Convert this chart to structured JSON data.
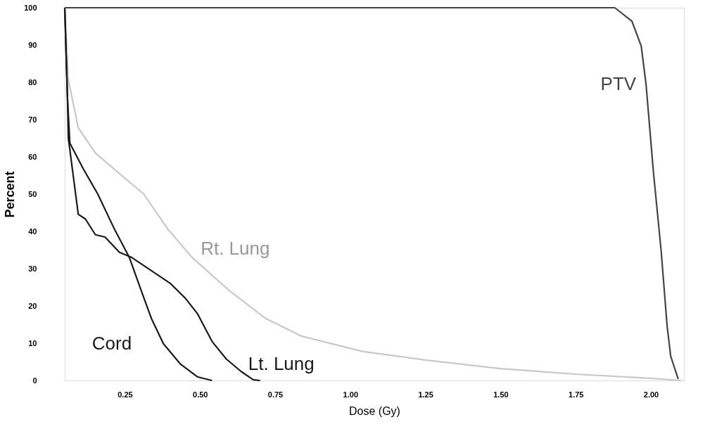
{
  "chart_data": {
    "type": "line",
    "xlabel": "Dose (Gy)",
    "ylabel": "Percent",
    "xlim": [
      0.05,
      2.11
    ],
    "ylim": [
      0,
      100
    ],
    "xticks": [
      {
        "value": 0.25,
        "label": "0.25"
      },
      {
        "value": 0.5,
        "label": "0.50"
      },
      {
        "value": 0.75,
        "label": "0.75"
      },
      {
        "value": 1,
        "label": "1.00"
      },
      {
        "value": 1.25,
        "label": "1.25"
      },
      {
        "value": 1.5,
        "label": "1.50"
      },
      {
        "value": 1.75,
        "label": "1.75"
      },
      {
        "value": 2,
        "label": "2.00"
      }
    ],
    "yticks": [
      0,
      10,
      20,
      30,
      40,
      50,
      60,
      70,
      80,
      90,
      100
    ],
    "grid": false,
    "series": [
      {
        "name": "Rt. Lung",
        "color": "#c8c8c8",
        "x": [
          0.05,
          0.062,
          0.095,
          0.152,
          0.232,
          0.313,
          0.394,
          0.474,
          0.596,
          0.717,
          0.838,
          1.04,
          1.25,
          1.5,
          1.75,
          2.0,
          2.1
        ],
        "values": [
          100,
          80.7,
          67.8,
          61,
          55.5,
          50,
          40.5,
          33,
          24.2,
          16.7,
          11.9,
          7.8,
          5.5,
          3.2,
          1.7,
          0.6,
          0
        ]
      },
      {
        "name": "Lt. Lung",
        "color": "#1a1a1a",
        "x": [
          0.05,
          0.059,
          0.062,
          0.095,
          0.119,
          0.152,
          0.184,
          0.232,
          0.273,
          0.354,
          0.402,
          0.451,
          0.491,
          0.54,
          0.587,
          0.637,
          0.677,
          0.7
        ],
        "values": [
          100,
          76,
          65,
          44.6,
          43.3,
          39.1,
          38.5,
          34.4,
          33,
          28.6,
          26,
          22.1,
          18,
          10.5,
          5.8,
          2.4,
          0.2,
          0
        ]
      },
      {
        "name": "Cord",
        "color": "#1a1a1a",
        "x": [
          0.05,
          0.059,
          0.067,
          0.111,
          0.16,
          0.216,
          0.265,
          0.304,
          0.338,
          0.378,
          0.435,
          0.491,
          0.54
        ],
        "values": [
          100,
          76,
          63.7,
          56.9,
          50,
          40.5,
          33,
          24.2,
          16.7,
          9.9,
          4.4,
          1,
          0
        ]
      },
      {
        "name": "PTV",
        "color": "#444444",
        "x": [
          0.05,
          1.88,
          1.937,
          1.968,
          1.984,
          2.009,
          2.034,
          2.054,
          2.066,
          2.091
        ],
        "values": [
          100,
          100,
          96.4,
          89.7,
          79.4,
          55.5,
          35,
          14.7,
          6.5,
          0.4
        ]
      }
    ]
  }
}
